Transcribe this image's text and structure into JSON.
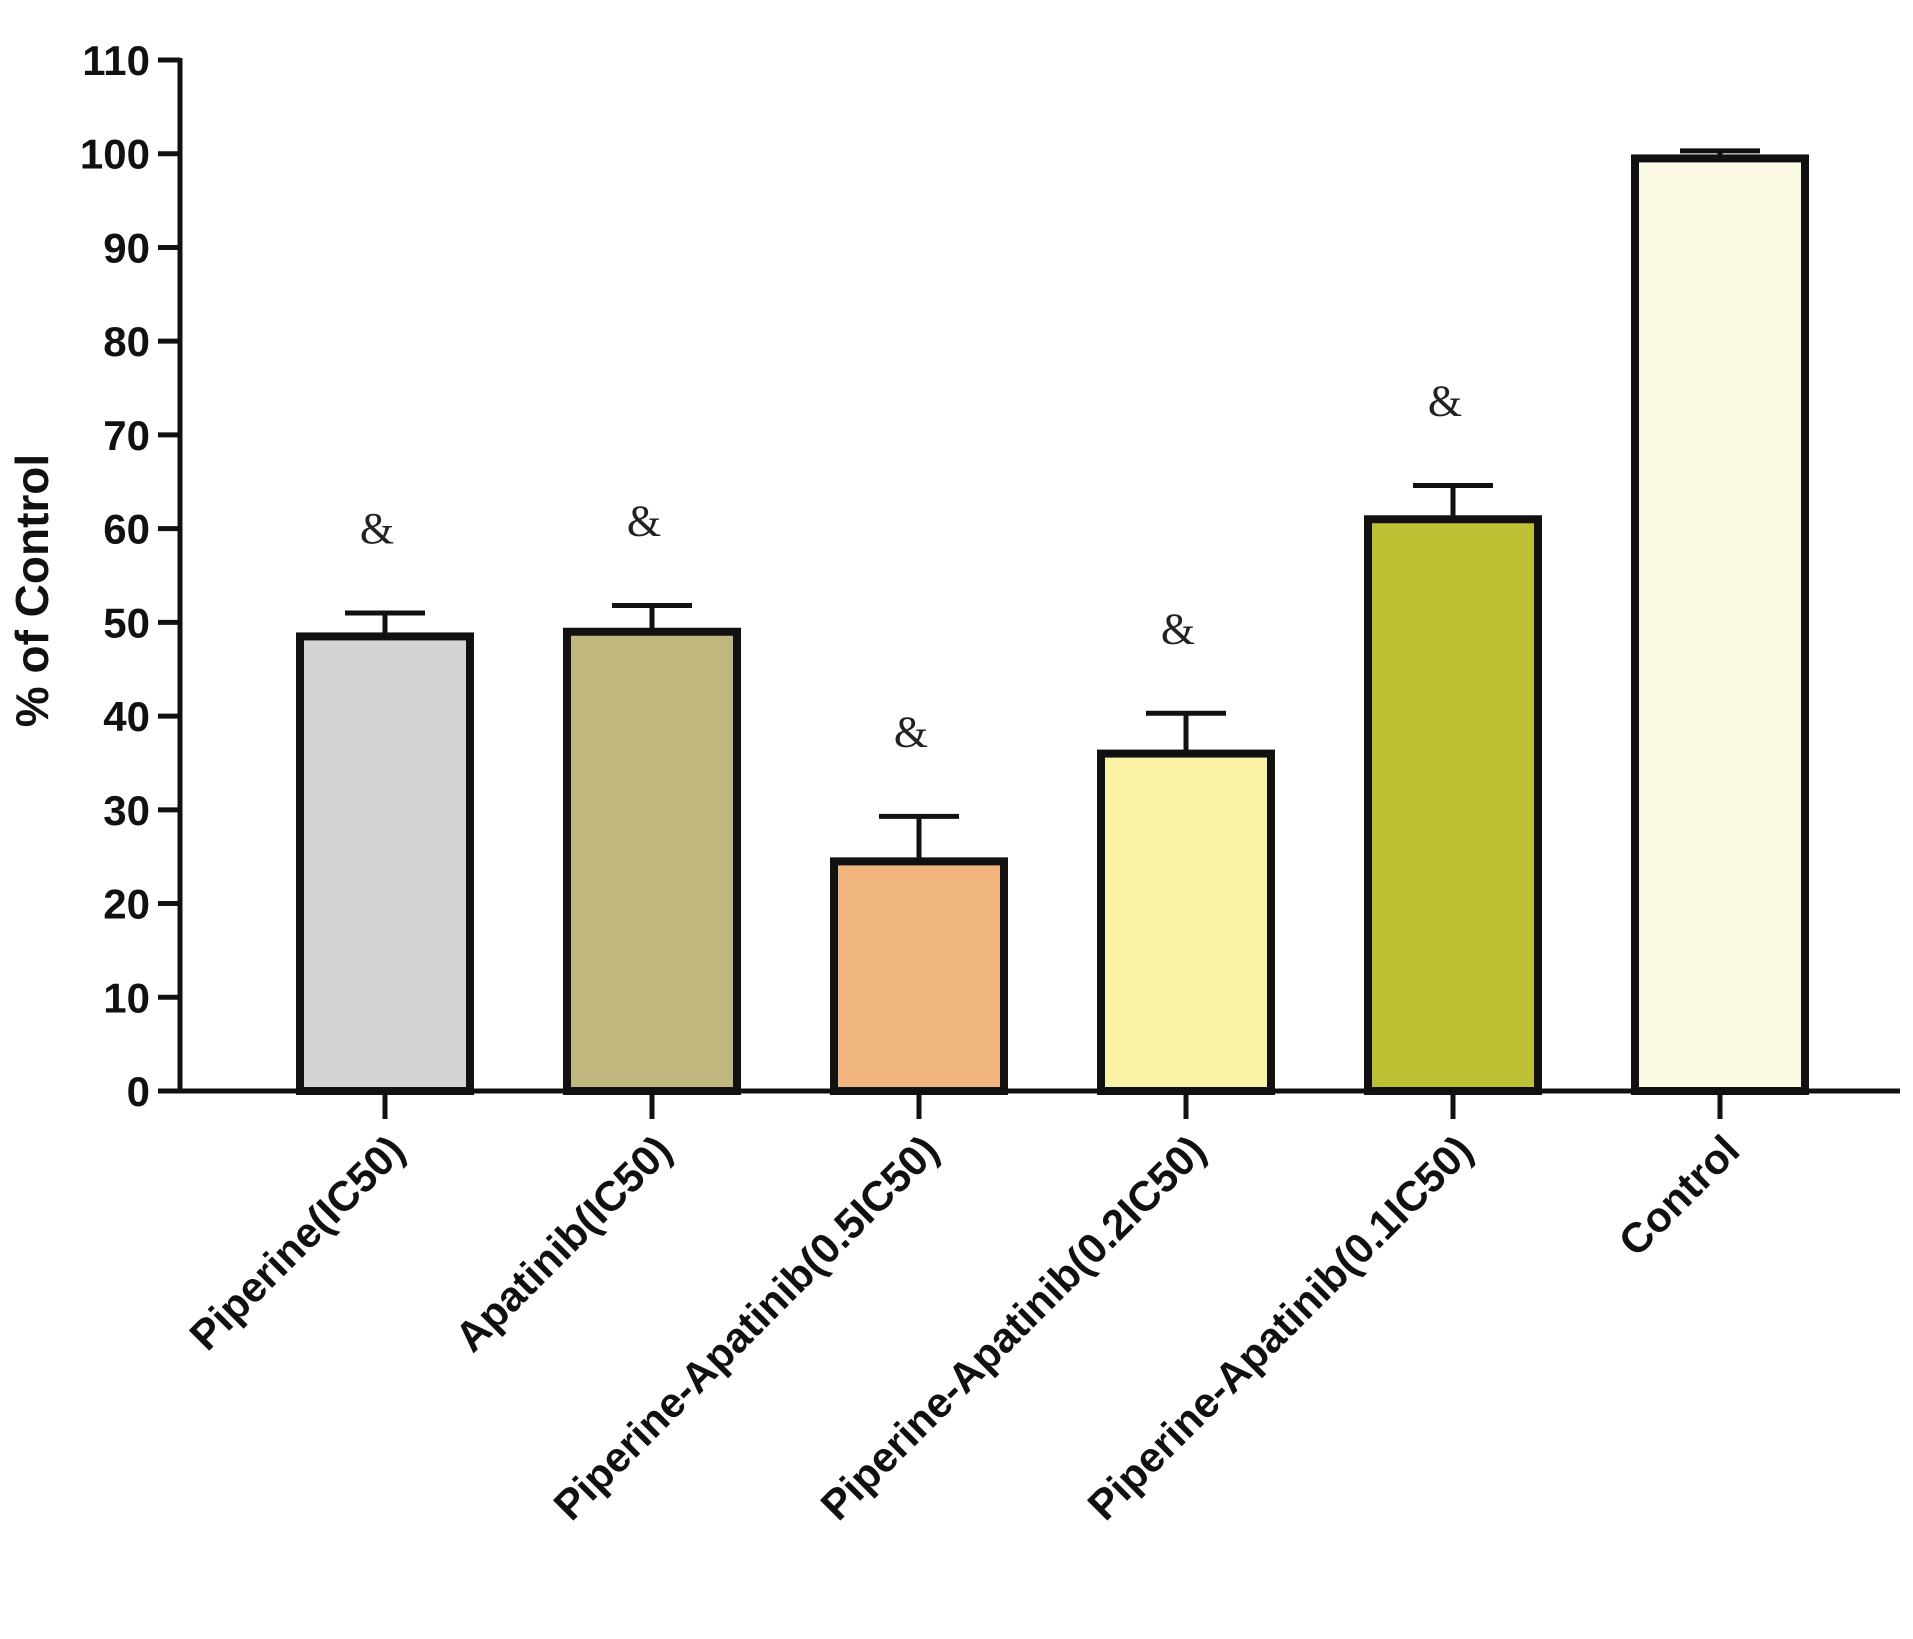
{
  "chart_data": {
    "type": "bar",
    "title": "",
    "xlabel": "",
    "ylabel": "% of Control",
    "ylim": [
      0,
      110
    ],
    "yticks": [
      0,
      10,
      20,
      30,
      40,
      50,
      60,
      70,
      80,
      90,
      100,
      110
    ],
    "grid": false,
    "categories": [
      "Piperine(IC50)",
      "Apatinib(IC50)",
      "Piperine-Apatinib(0.5IC50)",
      "Piperine-Apatinib(0.2IC50)",
      "Piperine-Apatinib(0.1IC50)",
      "Control"
    ],
    "values": [
      48.5,
      49,
      24.5,
      36,
      61,
      99.5
    ],
    "errors": [
      2.5,
      2.8,
      4.8,
      4.3,
      3.6,
      0.8
    ],
    "annotations": [
      "&",
      "&",
      "&",
      "&",
      "&",
      ""
    ],
    "colors": [
      "#d4d4d4",
      "#bfb77e",
      "#f0b47f",
      "#faf3a6",
      "#bec034",
      "#fcf9e4"
    ]
  }
}
